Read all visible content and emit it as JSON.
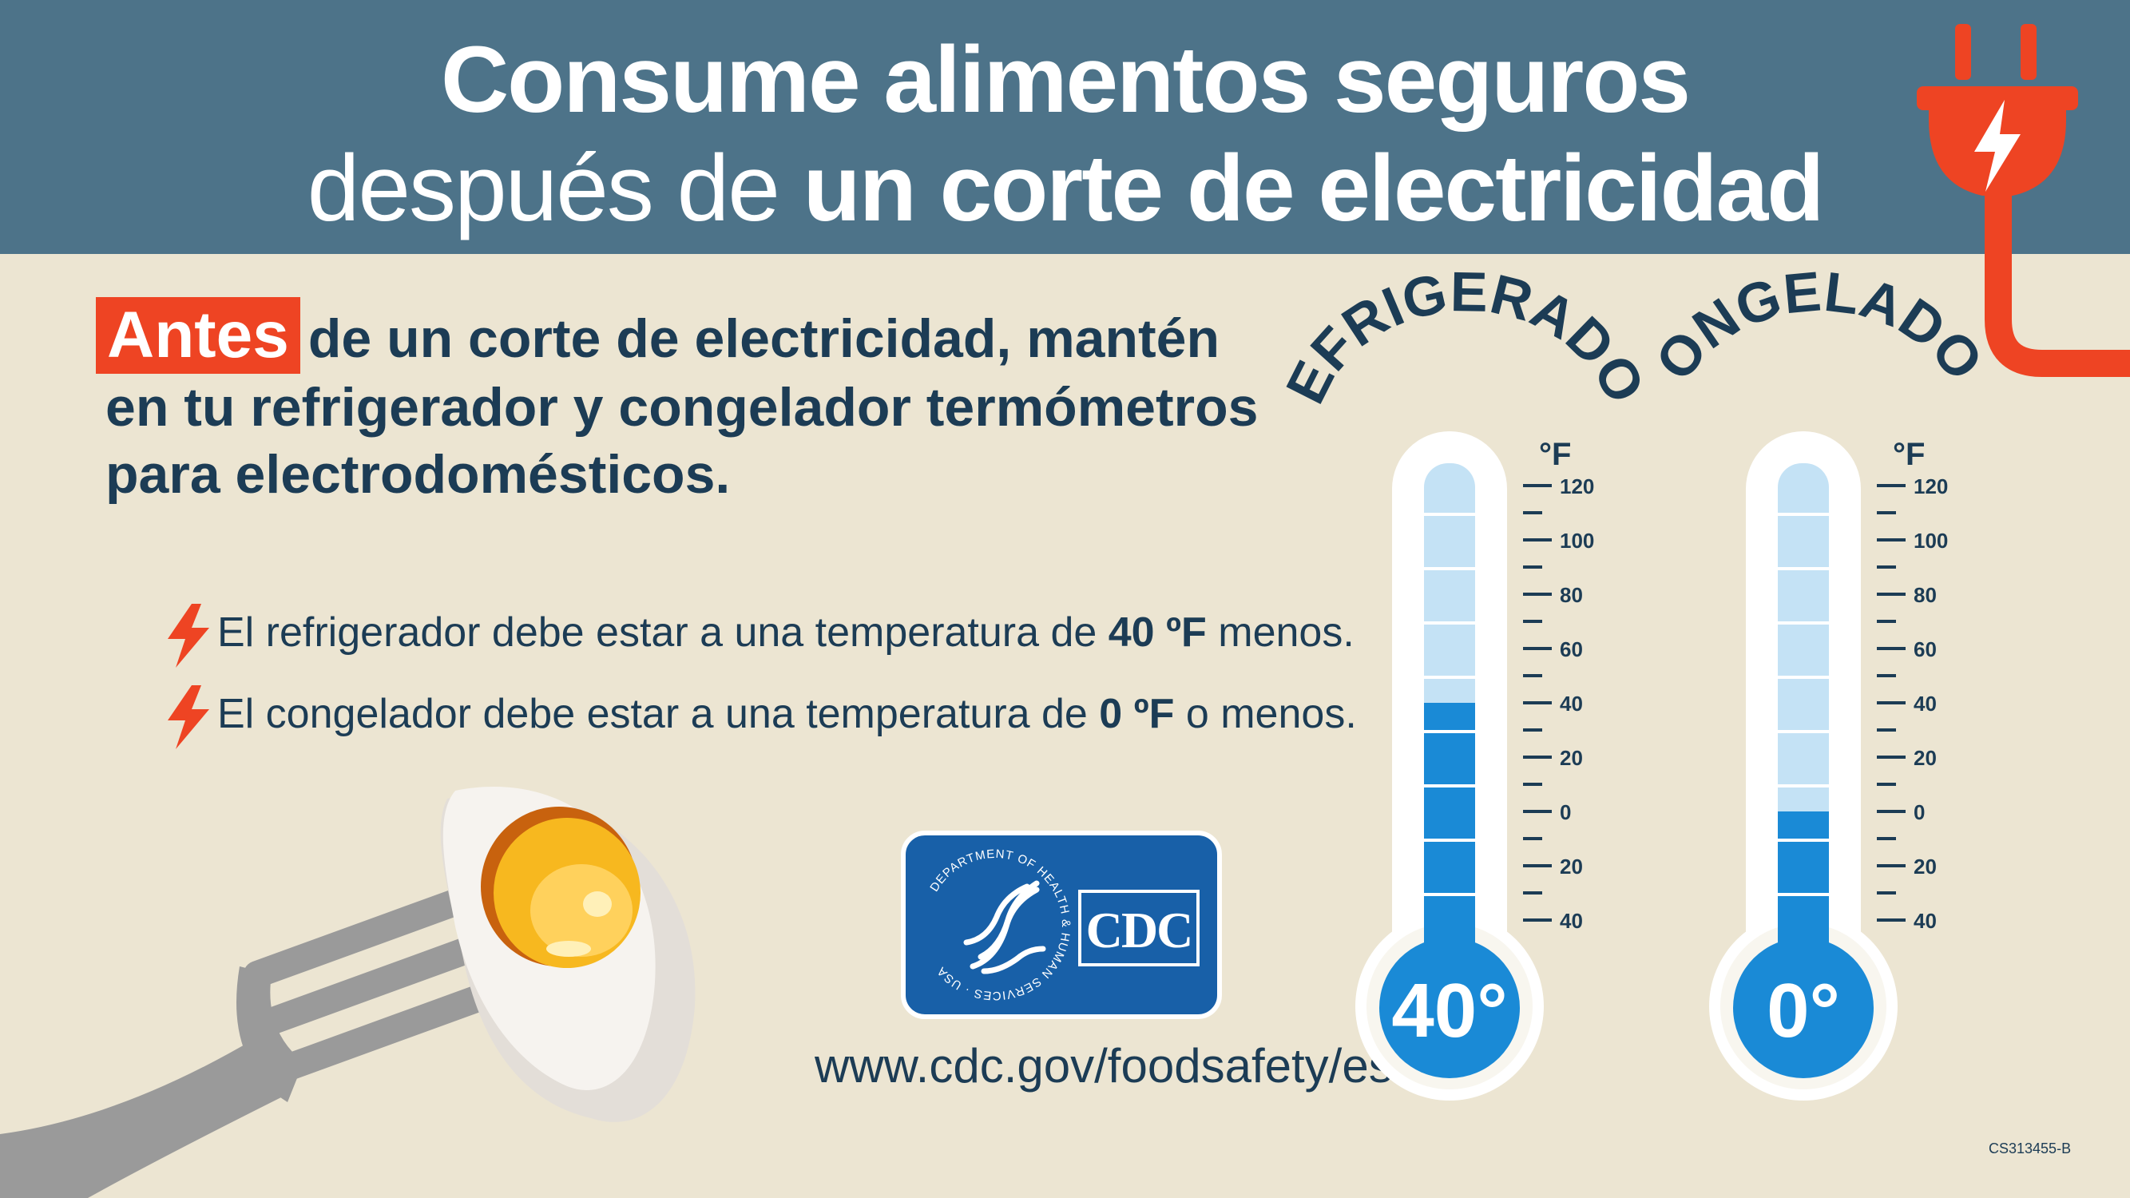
{
  "header": {
    "title_line1": "Consume alimentos seguros",
    "title_line2_regular": "después de ",
    "title_line2_bold": "un corte de electricidad"
  },
  "intro": {
    "highlight": "Antes",
    "text": "de un corte de electricidad, mantén en tu refrigerador y congelador termómetros para electrodomésticos."
  },
  "bullets": [
    {
      "before": "El refrigerador debe estar a una temperatura de ",
      "bold": "40 ºF",
      "after": " menos."
    },
    {
      "before": "El congelador debe estar a una temperatura de ",
      "bold": "0 ºF",
      "after": " o menos."
    }
  ],
  "thermometers": [
    {
      "label": "REFRIGERADOR",
      "unit": "°F",
      "reading": "40°",
      "value": 40,
      "ticks": [
        "120",
        "100",
        "80",
        "60",
        "40",
        "20",
        "0",
        "20",
        "40"
      ]
    },
    {
      "label": "CONGELADOR",
      "unit": "°F",
      "reading": "0°",
      "value": 0,
      "ticks": [
        "120",
        "100",
        "80",
        "60",
        "40",
        "20",
        "0",
        "20",
        "40"
      ]
    }
  ],
  "logo": {
    "cdc": "CDC",
    "hhs_ring": "DEPARTMENT OF HEALTH & HUMAN SERVICES · USA"
  },
  "url": "www.cdc.gov/foodsafety/es",
  "code": "CS313455-B",
  "colors": {
    "header": "#4d7389",
    "background": "#ece5d2",
    "accent": "#ee4423",
    "text": "#1c3c55",
    "mercury": "#1a8ad6",
    "tube": "#c4e2f5"
  },
  "icons": [
    "plug-icon",
    "bolt-icon",
    "egg-on-fork-icon",
    "hhs-eagle-icon"
  ]
}
